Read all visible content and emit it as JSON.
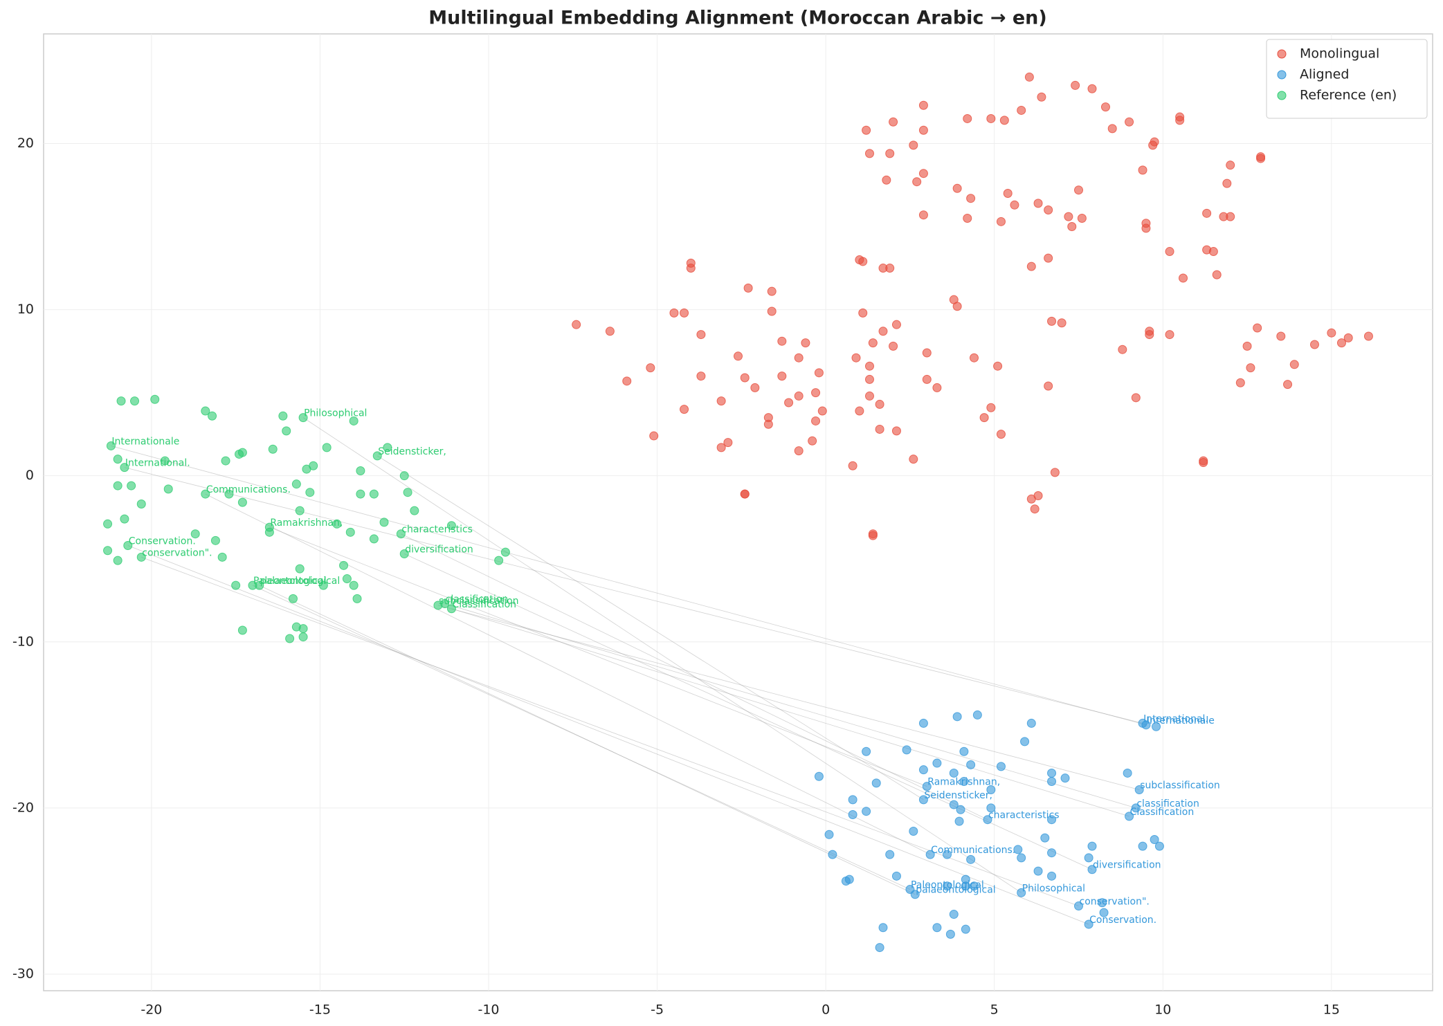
{
  "chart_data": {
    "type": "scatter",
    "title": "Multilingual Embedding Alignment (Moroccan Arabic → en)",
    "xlim": [
      -23.2,
      18.0
    ],
    "ylim": [
      -31.0,
      26.6
    ],
    "xticks": [
      -20,
      -15,
      -10,
      -5,
      0,
      5,
      10,
      15
    ],
    "yticks": [
      -30,
      -20,
      -10,
      0,
      10,
      20
    ],
    "grid": true,
    "legend": "upper right",
    "series": [
      {
        "name": "Monolingual",
        "color": "#e74c3c",
        "x": [
          6.04,
          7.4,
          7.9,
          6.4,
          2.9,
          8.3,
          5.8,
          10.5,
          4.2,
          4.9,
          5.3,
          10.5,
          9.0,
          2.0,
          1.2,
          2.9,
          8.5,
          9.75,
          9.7,
          2.6,
          1.3,
          1.9,
          12.9,
          12.9,
          12.0,
          2.9,
          9.4,
          1.8,
          11.9,
          2.7,
          3.9,
          7.5,
          5.4,
          4.3,
          5.6,
          6.3,
          6.6,
          2.9,
          11.3,
          7.2,
          7.6,
          4.2,
          5.2,
          11.8,
          12.0,
          7.3,
          9.5,
          9.5,
          10.2,
          11.3,
          11.5,
          6.6,
          1.0,
          1.1,
          -4.0,
          -4.0,
          1.7,
          1.9,
          6.1,
          10.6,
          11.6,
          -2.3,
          -1.6,
          3.8,
          3.9,
          -4.5,
          -4.2,
          -1.6,
          1.1,
          -7.4,
          -6.4,
          6.7,
          7.0,
          2.1,
          1.7,
          -3.7,
          12.8,
          9.6,
          9.6,
          10.2,
          15.0,
          15.5,
          15.3,
          16.1,
          13.5,
          -1.3,
          -0.6,
          1.4,
          2.0,
          14.5,
          12.5,
          8.8,
          -2.6,
          -0.8,
          0.9,
          4.4,
          3.0,
          13.9,
          1.3,
          5.1,
          -5.2,
          12.6,
          -0.2,
          -3.7,
          -1.3,
          -2.4,
          1.3,
          3.0,
          -5.9,
          12.3,
          13.7,
          -2.1,
          3.3,
          6.6,
          -0.3,
          1.3,
          -0.8,
          9.2,
          -1.1,
          -3.1,
          1.6,
          -4.2,
          4.9,
          1.0,
          -0.1,
          -1.7,
          4.7,
          -0.3,
          -1.7,
          1.6,
          2.1,
          5.2,
          -5.1,
          -0.4,
          -2.9,
          -3.1,
          -0.8,
          2.6,
          11.2,
          11.2,
          0.8,
          6.8,
          -2.4,
          -2.4,
          6.3,
          6.1,
          6.2,
          1.4,
          1.4
        ],
        "y": [
          24.0,
          23.5,
          23.3,
          22.8,
          22.3,
          22.2,
          22.0,
          21.6,
          21.5,
          21.5,
          21.4,
          21.4,
          21.3,
          21.3,
          20.8,
          20.8,
          20.9,
          20.1,
          19.9,
          19.9,
          19.4,
          19.4,
          19.1,
          19.2,
          18.7,
          18.2,
          18.4,
          17.8,
          17.6,
          17.7,
          17.3,
          17.2,
          17.0,
          16.7,
          16.3,
          16.4,
          16.0,
          15.7,
          15.8,
          15.6,
          15.5,
          15.5,
          15.3,
          15.6,
          15.6,
          15.0,
          15.2,
          14.9,
          13.5,
          13.6,
          13.5,
          13.1,
          13.0,
          12.9,
          12.8,
          12.5,
          12.5,
          12.5,
          12.6,
          11.9,
          12.1,
          11.3,
          11.1,
          10.6,
          10.2,
          9.8,
          9.8,
          9.9,
          9.8,
          9.1,
          8.7,
          9.3,
          9.2,
          9.1,
          8.7,
          8.5,
          8.9,
          8.7,
          8.5,
          8.5,
          8.6,
          8.3,
          8.0,
          8.4,
          8.4,
          8.1,
          8.0,
          8.0,
          7.8,
          7.9,
          7.8,
          7.6,
          7.2,
          7.1,
          7.1,
          7.1,
          7.4,
          6.7,
          6.6,
          6.6,
          6.5,
          6.5,
          6.2,
          6.0,
          6.0,
          5.9,
          5.8,
          5.8,
          5.7,
          5.6,
          5.5,
          5.3,
          5.3,
          5.4,
          5.0,
          4.8,
          4.8,
          4.7,
          4.4,
          4.5,
          4.3,
          4.0,
          4.1,
          3.9,
          3.9,
          3.5,
          3.5,
          3.3,
          3.1,
          2.8,
          2.7,
          2.5,
          2.4,
          2.1,
          2.0,
          1.7,
          1.5,
          1.0,
          0.9,
          0.8,
          0.6,
          0.2,
          -1.1,
          -1.1,
          -1.2,
          -1.4,
          -2.0,
          -3.5,
          -3.6
        ]
      },
      {
        "name": "Aligned",
        "color": "#3498db",
        "x": [
          2.9,
          3.9,
          4.5,
          6.1,
          9.4,
          9.5,
          9.8,
          5.9,
          2.4,
          1.2,
          4.1,
          3.3,
          4.3,
          5.2,
          2.9,
          3.8,
          6.7,
          7.1,
          8.95,
          -0.2,
          4.1,
          6.7,
          1.5,
          3.0,
          4.9,
          9.3,
          2.9,
          0.8,
          3.8,
          4.9,
          9.2,
          4.0,
          0.8,
          1.2,
          9.0,
          3.96,
          4.8,
          6.7,
          2.6,
          0.1,
          6.5,
          9.75,
          9.4,
          9.9,
          7.9,
          5.7,
          3.1,
          3.6,
          6.7,
          1.9,
          0.2,
          4.3,
          5.8,
          7.8,
          6.3,
          7.9,
          6.7,
          2.1,
          4.15,
          0.7,
          0.6,
          4.15,
          4.4,
          3.6,
          2.5,
          2.65,
          5.8,
          7.5,
          8.2,
          8.25,
          3.8,
          1.7,
          3.3,
          4.15,
          3.7,
          7.8,
          1.6
        ],
        "y": [
          -14.9,
          -14.5,
          -14.4,
          -14.9,
          -14.9,
          -15.0,
          -15.1,
          -16.0,
          -16.5,
          -16.6,
          -16.6,
          -17.3,
          -17.4,
          -17.5,
          -17.7,
          -17.9,
          -17.9,
          -18.2,
          -17.9,
          -18.1,
          -18.4,
          -18.4,
          -18.5,
          -18.7,
          -18.9,
          -18.9,
          -19.5,
          -19.5,
          -19.8,
          -20.0,
          -20.0,
          -20.1,
          -20.4,
          -20.2,
          -20.5,
          -20.8,
          -20.7,
          -20.7,
          -21.4,
          -21.6,
          -21.8,
          -21.9,
          -22.3,
          -22.3,
          -22.3,
          -22.5,
          -22.8,
          -22.8,
          -22.7,
          -22.8,
          -22.8,
          -23.1,
          -23.0,
          -23.0,
          -23.8,
          -23.7,
          -24.1,
          -24.1,
          -24.3,
          -24.3,
          -24.4,
          -24.7,
          -24.7,
          -24.7,
          -24.9,
          -25.2,
          -25.1,
          -25.9,
          -25.7,
          -26.3,
          -26.4,
          -27.2,
          -27.2,
          -27.3,
          -27.6,
          -27.0,
          -28.4
        ]
      },
      {
        "name": "Reference (en)",
        "color": "#2ecc71",
        "x": [
          -20.9,
          -20.5,
          -19.9,
          -18.4,
          -18.2,
          -16.1,
          -15.5,
          -14.0,
          -16.0,
          -21.2,
          -14.8,
          -13.0,
          -16.4,
          -17.4,
          -17.3,
          -13.3,
          -21.0,
          -19.6,
          -17.8,
          -20.8,
          -15.2,
          -15.4,
          -13.8,
          -12.5,
          -21.0,
          -20.6,
          -19.5,
          -15.7,
          -18.4,
          -17.7,
          -15.3,
          -13.8,
          -13.4,
          -12.4,
          -17.3,
          -20.3,
          -15.6,
          -12.2,
          -20.8,
          -21.3,
          -16.5,
          -13.1,
          -14.5,
          -11.1,
          -16.5,
          -14.1,
          -18.7,
          -12.6,
          -13.4,
          -18.1,
          -20.7,
          -21.3,
          -9.5,
          -12.5,
          -20.3,
          -17.9,
          -21.0,
          -9.7,
          -14.3,
          -15.6,
          -14.2,
          -17.5,
          -17.0,
          -16.8,
          -14.0,
          -14.9,
          -15.8,
          -13.9,
          -11.5,
          -11.3,
          -11.1,
          -17.3,
          -15.7,
          -15.5,
          -15.9,
          -15.5
        ],
        "y": [
          4.5,
          4.5,
          4.6,
          3.9,
          3.6,
          3.6,
          3.5,
          3.3,
          2.7,
          1.8,
          1.7,
          1.7,
          1.6,
          1.3,
          1.4,
          1.2,
          1.0,
          0.9,
          0.9,
          0.5,
          0.6,
          0.4,
          0.3,
          0.0,
          -0.6,
          -0.6,
          -0.8,
          -0.5,
          -1.1,
          -1.1,
          -1.0,
          -1.1,
          -1.1,
          -1.0,
          -1.6,
          -1.7,
          -2.1,
          -2.1,
          -2.6,
          -2.9,
          -3.1,
          -2.8,
          -2.9,
          -3.0,
          -3.4,
          -3.4,
          -3.5,
          -3.5,
          -3.8,
          -3.9,
          -4.2,
          -4.5,
          -4.6,
          -4.7,
          -4.9,
          -4.9,
          -5.1,
          -5.1,
          -5.4,
          -5.6,
          -6.2,
          -6.6,
          -6.6,
          -6.6,
          -6.6,
          -6.6,
          -7.4,
          -7.4,
          -7.8,
          -7.7,
          -8.0,
          -9.3,
          -9.1,
          -9.2,
          -9.8,
          -9.7
        ]
      }
    ],
    "word_pairs": [
      {
        "word": "Philosophical",
        "reference": [
          -15.5,
          3.5
        ],
        "aligned": [
          5.8,
          -25.1
        ]
      },
      {
        "word": "Seidensticker,",
        "reference": [
          -13.3,
          1.2
        ],
        "aligned": [
          2.9,
          -19.5
        ]
      },
      {
        "word": "Internationale",
        "reference": [
          -21.2,
          1.8
        ],
        "aligned": [
          9.5,
          -15.0
        ]
      },
      {
        "word": "International.",
        "reference": [
          -20.8,
          0.5
        ],
        "aligned": [
          9.4,
          -14.9
        ]
      },
      {
        "word": "Communications.",
        "reference": [
          -18.4,
          -1.1
        ],
        "aligned": [
          3.1,
          -22.8
        ]
      },
      {
        "word": "Ramakrishnan,",
        "reference": [
          -16.5,
          -3.1
        ],
        "aligned": [
          3.0,
          -18.7
        ]
      },
      {
        "word": "characteristics",
        "reference": [
          -12.6,
          -3.5
        ],
        "aligned": [
          4.8,
          -20.7
        ]
      },
      {
        "word": "diversification",
        "reference": [
          -12.5,
          -4.7
        ],
        "aligned": [
          7.9,
          -23.7
        ]
      },
      {
        "word": "Conservation.",
        "reference": [
          -20.7,
          -4.2
        ],
        "aligned": [
          7.8,
          -27.0
        ]
      },
      {
        "word": "conservation\".",
        "reference": [
          -20.3,
          -4.9
        ],
        "aligned": [
          7.5,
          -25.9
        ]
      },
      {
        "word": "Paleontological",
        "reference": [
          -17.0,
          -6.6
        ],
        "aligned": [
          2.5,
          -24.9
        ]
      },
      {
        "word": "palaeontological",
        "reference": [
          -16.8,
          -6.6
        ],
        "aligned": [
          2.65,
          -25.2
        ]
      },
      {
        "word": "subclassification",
        "reference": [
          -11.5,
          -7.8
        ],
        "aligned": [
          9.3,
          -18.9
        ]
      },
      {
        "word": "classification",
        "reference": [
          -11.3,
          -7.7
        ],
        "aligned": [
          9.2,
          -20.0
        ]
      },
      {
        "word": "Classification",
        "reference": [
          -11.1,
          -8.0
        ],
        "aligned": [
          9.0,
          -20.5
        ]
      }
    ]
  }
}
